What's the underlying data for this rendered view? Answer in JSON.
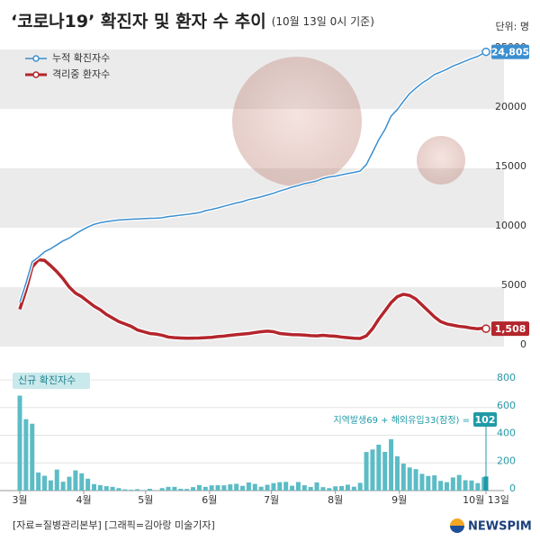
{
  "chart_data": [
    {
      "type": "line",
      "title": "‘코로나19’ 확진자 및 환자 수 추이",
      "subtitle": "(10월 13일 0시 기준)",
      "unit": "단위: 명",
      "x": [
        0,
        3,
        6,
        9,
        12,
        15,
        18,
        21,
        24,
        27,
        30,
        33,
        36,
        39,
        42,
        45,
        48,
        51,
        54,
        57,
        60,
        63,
        66,
        69,
        72,
        75,
        78,
        81,
        84,
        87,
        90,
        93,
        96,
        99,
        102,
        105,
        108,
        111,
        114,
        117,
        120,
        123,
        126,
        129,
        132,
        135,
        138,
        141,
        144,
        147,
        150,
        153,
        156,
        159,
        162,
        165,
        168,
        171,
        174,
        177,
        180,
        183,
        186,
        189,
        192,
        195,
        198,
        201,
        204,
        207,
        210,
        213,
        216,
        219,
        222,
        225,
        226
      ],
      "xlim": [
        0,
        226
      ],
      "ylim": [
        0,
        25000
      ],
      "yticks": [
        0,
        5000,
        10000,
        15000,
        20000,
        25000
      ],
      "band_color": "#ebebeb",
      "series": [
        {
          "name": "누적 확진자수",
          "color": "#3b8fd0",
          "end_label": "24,805",
          "values": [
            3736,
            5328,
            7134,
            7513,
            7979,
            8236,
            8565,
            8897,
            9137,
            9478,
            9786,
            10062,
            10284,
            10423,
            10512,
            10591,
            10653,
            10683,
            10718,
            10738,
            10765,
            10793,
            10806,
            10840,
            10936,
            10991,
            11065,
            11122,
            11190,
            11265,
            11441,
            11541,
            11668,
            11814,
            11947,
            12085,
            12198,
            12373,
            12484,
            12602,
            12757,
            12904,
            13091,
            13244,
            13417,
            13551,
            13711,
            13816,
            13938,
            14150,
            14269,
            14336,
            14456,
            14562,
            14660,
            14770,
            15318,
            16346,
            17399,
            18265,
            19400,
            19947,
            20644,
            21296,
            21743,
            22176,
            22504,
            22893,
            23106,
            23341,
            23611,
            23812,
            24027,
            24239,
            24422,
            24703,
            24805
          ]
        },
        {
          "name": "격리중 환자수",
          "color": "#b3262c",
          "end_label": "1,508",
          "values": [
            3140,
            4750,
            6700,
            7300,
            7250,
            6800,
            6300,
            5700,
            5000,
            4500,
            4200,
            3800,
            3400,
            3100,
            2700,
            2400,
            2100,
            1900,
            1700,
            1400,
            1250,
            1100,
            1050,
            950,
            800,
            750,
            720,
            700,
            710,
            720,
            750,
            780,
            840,
            880,
            950,
            1000,
            1050,
            1100,
            1180,
            1250,
            1300,
            1250,
            1100,
            1050,
            1000,
            990,
            970,
            920,
            900,
            950,
            900,
            870,
            800,
            750,
            700,
            680,
            900,
            1500,
            2300,
            3000,
            3700,
            4200,
            4400,
            4300,
            4000,
            3500,
            3000,
            2500,
            2100,
            1900,
            1800,
            1700,
            1650,
            1550,
            1500,
            1550,
            1508
          ]
        }
      ]
    },
    {
      "type": "bar",
      "title": "신규 확진자수",
      "color": "#5cbcc6",
      "highlight_color": "#1f9aa6",
      "annotation": "지역발생69 + 해외유입33(잠정) =",
      "x": [
        0,
        3,
        6,
        9,
        12,
        15,
        18,
        21,
        24,
        27,
        30,
        33,
        36,
        39,
        42,
        45,
        48,
        51,
        54,
        57,
        60,
        63,
        66,
        69,
        72,
        75,
        78,
        81,
        84,
        87,
        90,
        93,
        96,
        99,
        102,
        105,
        108,
        111,
        114,
        117,
        120,
        123,
        126,
        129,
        132,
        135,
        138,
        141,
        144,
        147,
        150,
        153,
        156,
        159,
        162,
        165,
        168,
        171,
        174,
        177,
        180,
        183,
        186,
        189,
        192,
        195,
        198,
        201,
        204,
        207,
        210,
        213,
        216,
        219,
        222,
        225,
        226
      ],
      "xlim": [
        0,
        226
      ],
      "ylim": [
        0,
        800
      ],
      "yticks": [
        0,
        200,
        400,
        600,
        800
      ],
      "xticks": [
        {
          "value": 0,
          "label": "3월"
        },
        {
          "value": 31,
          "label": "4월"
        },
        {
          "value": 61,
          "label": "5월"
        },
        {
          "value": 92,
          "label": "6월"
        },
        {
          "value": 122,
          "label": "7월"
        },
        {
          "value": 153,
          "label": "8월"
        },
        {
          "value": 184,
          "label": "9월"
        },
        {
          "value": 226,
          "label": "10월 13일"
        }
      ],
      "values": [
        686,
        516,
        483,
        131,
        107,
        74,
        152,
        64,
        100,
        146,
        125,
        86,
        47,
        39,
        32,
        27,
        18,
        9,
        6,
        10,
        4,
        13,
        2,
        18,
        27,
        27,
        13,
        12,
        25,
        40,
        27,
        38,
        39,
        38,
        45,
        49,
        34,
        59,
        48,
        28,
        42,
        54,
        61,
        63,
        35,
        62,
        39,
        26,
        59,
        25,
        18,
        31,
        33,
        43,
        28,
        56,
        279,
        297,
        332,
        280,
        371,
        248,
        195,
        167,
        155,
        121,
        106,
        110,
        70,
        61,
        95,
        113,
        75,
        73,
        54,
        97,
        102
      ]
    }
  ],
  "source": "[자료=질병관리본부] [그래픽=김아랑 미술기자]",
  "logo": "NEWSPIM"
}
